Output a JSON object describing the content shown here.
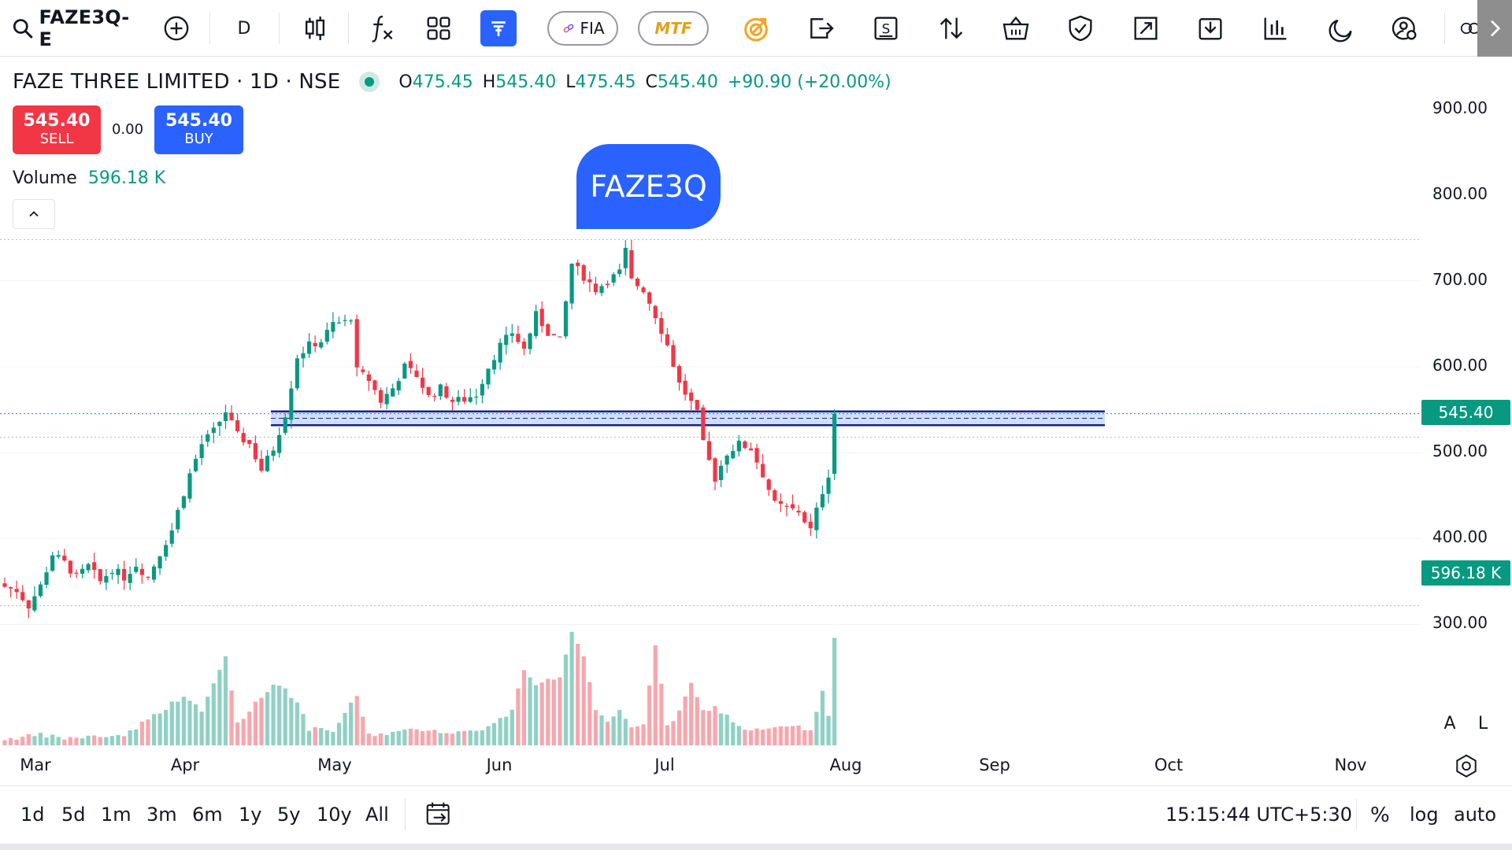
{
  "toolbar": {
    "symbol": "FAZE3Q-E",
    "interval": "D",
    "fia_label": "FIA",
    "mtf_label": "MTF"
  },
  "legend": {
    "title": "FAZE THREE LIMITED · 1D · NSE",
    "o_label": "O",
    "o_value": "475.45",
    "h_label": "H",
    "h_value": "545.40",
    "l_label": "L",
    "l_value": "475.45",
    "c_label": "C",
    "c_value": "545.40",
    "change": "+90.90 (+20.00%)"
  },
  "trade": {
    "sell_price": "545.40",
    "sell_label": "SELL",
    "spread": "0.00",
    "buy_price": "545.40",
    "buy_label": "BUY"
  },
  "volume_legend": {
    "label": "Volume",
    "value": "596.18 K"
  },
  "badge": "FAZE3Q",
  "price_scale": {
    "ticks": [
      "900.00",
      "800.00",
      "700.00",
      "600.00",
      "500.00",
      "400.00",
      "300.00"
    ],
    "last_price": "545.40",
    "last_volume": "596.18 K",
    "a_label": "A",
    "l_label": "L"
  },
  "time_axis": [
    "Mar",
    "Apr",
    "May",
    "Jun",
    "Jul",
    "Aug",
    "Sep",
    "Oct",
    "Nov"
  ],
  "bottom_bar": {
    "ranges": [
      "1d",
      "5d",
      "1m",
      "3m",
      "6m",
      "1y",
      "5y",
      "10y",
      "All"
    ],
    "clock": "15:15:44 UTC+5:30",
    "percent_label": "%",
    "log_label": "log",
    "auto_label": "auto"
  },
  "colors": {
    "up": "#089981",
    "down": "#f23645",
    "accent": "#2962ff",
    "vol_up": "#8fd1c4",
    "vol_down": "#f8a6ad"
  },
  "chart_data": {
    "type": "candlestick",
    "ylim": [
      250,
      920
    ],
    "support_zone": [
      532,
      548
    ],
    "price_anchors": [
      [
        0,
        344
      ],
      [
        2,
        340
      ],
      [
        4,
        322
      ],
      [
        6,
        345
      ],
      [
        8,
        382
      ],
      [
        10,
        372
      ],
      [
        12,
        355
      ],
      [
        14,
        368
      ],
      [
        16,
        350
      ],
      [
        18,
        365
      ],
      [
        20,
        355
      ],
      [
        22,
        370
      ],
      [
        24,
        355
      ],
      [
        26,
        383
      ],
      [
        28,
        410
      ],
      [
        29,
        432
      ],
      [
        31,
        475
      ],
      [
        33,
        510
      ],
      [
        35,
        525
      ],
      [
        37,
        548
      ],
      [
        39,
        520
      ],
      [
        41,
        510
      ],
      [
        43,
        480
      ],
      [
        45,
        505
      ],
      [
        47,
        545
      ],
      [
        49,
        612
      ],
      [
        51,
        625
      ],
      [
        53,
        630
      ],
      [
        55,
        650
      ],
      [
        57,
        652
      ],
      [
        58,
        658
      ],
      [
        59,
        595
      ],
      [
        61,
        585
      ],
      [
        63,
        560
      ],
      [
        65,
        575
      ],
      [
        67,
        600
      ],
      [
        69,
        590
      ],
      [
        71,
        565
      ],
      [
        73,
        575
      ],
      [
        75,
        560
      ],
      [
        77,
        562
      ],
      [
        79,
        568
      ],
      [
        81,
        600
      ],
      [
        83,
        625
      ],
      [
        85,
        640
      ],
      [
        87,
        620
      ],
      [
        89,
        660
      ],
      [
        91,
        640
      ],
      [
        93,
        630
      ],
      [
        95,
        720
      ],
      [
        97,
        705
      ],
      [
        99,
        690
      ],
      [
        101,
        700
      ],
      [
        103,
        710
      ],
      [
        104,
        735
      ],
      [
        105,
        700
      ],
      [
        107,
        690
      ],
      [
        109,
        660
      ],
      [
        111,
        625
      ],
      [
        113,
        580
      ],
      [
        115,
        558
      ],
      [
        116,
        545
      ],
      [
        117,
        510
      ],
      [
        119,
        470
      ],
      [
        121,
        500
      ],
      [
        123,
        510
      ],
      [
        125,
        505
      ],
      [
        127,
        475
      ],
      [
        129,
        440
      ],
      [
        131,
        435
      ],
      [
        133,
        432
      ],
      [
        135,
        410
      ],
      [
        137,
        455
      ],
      [
        138,
        475
      ],
      [
        139,
        545
      ]
    ],
    "volume_anchors": [
      [
        0,
        5
      ],
      [
        6,
        10
      ],
      [
        10,
        6
      ],
      [
        20,
        10
      ],
      [
        28,
        50
      ],
      [
        30,
        60
      ],
      [
        33,
        40
      ],
      [
        37,
        110
      ],
      [
        39,
        25
      ],
      [
        45,
        75
      ],
      [
        47,
        70
      ],
      [
        49,
        50
      ],
      [
        51,
        18
      ],
      [
        55,
        15
      ],
      [
        59,
        60
      ],
      [
        61,
        10
      ],
      [
        67,
        15
      ],
      [
        71,
        18
      ],
      [
        75,
        12
      ],
      [
        81,
        20
      ],
      [
        85,
        40
      ],
      [
        87,
        95
      ],
      [
        89,
        75
      ],
      [
        93,
        85
      ],
      [
        95,
        140
      ],
      [
        97,
        110
      ],
      [
        99,
        40
      ],
      [
        101,
        25
      ],
      [
        103,
        40
      ],
      [
        105,
        20
      ],
      [
        107,
        25
      ],
      [
        109,
        125
      ],
      [
        111,
        20
      ],
      [
        113,
        40
      ],
      [
        115,
        75
      ],
      [
        117,
        40
      ],
      [
        119,
        45
      ],
      [
        121,
        35
      ],
      [
        123,
        20
      ],
      [
        127,
        15
      ],
      [
        129,
        20
      ],
      [
        133,
        20
      ],
      [
        135,
        15
      ],
      [
        137,
        65
      ],
      [
        138,
        35
      ],
      [
        139,
        135
      ]
    ]
  }
}
